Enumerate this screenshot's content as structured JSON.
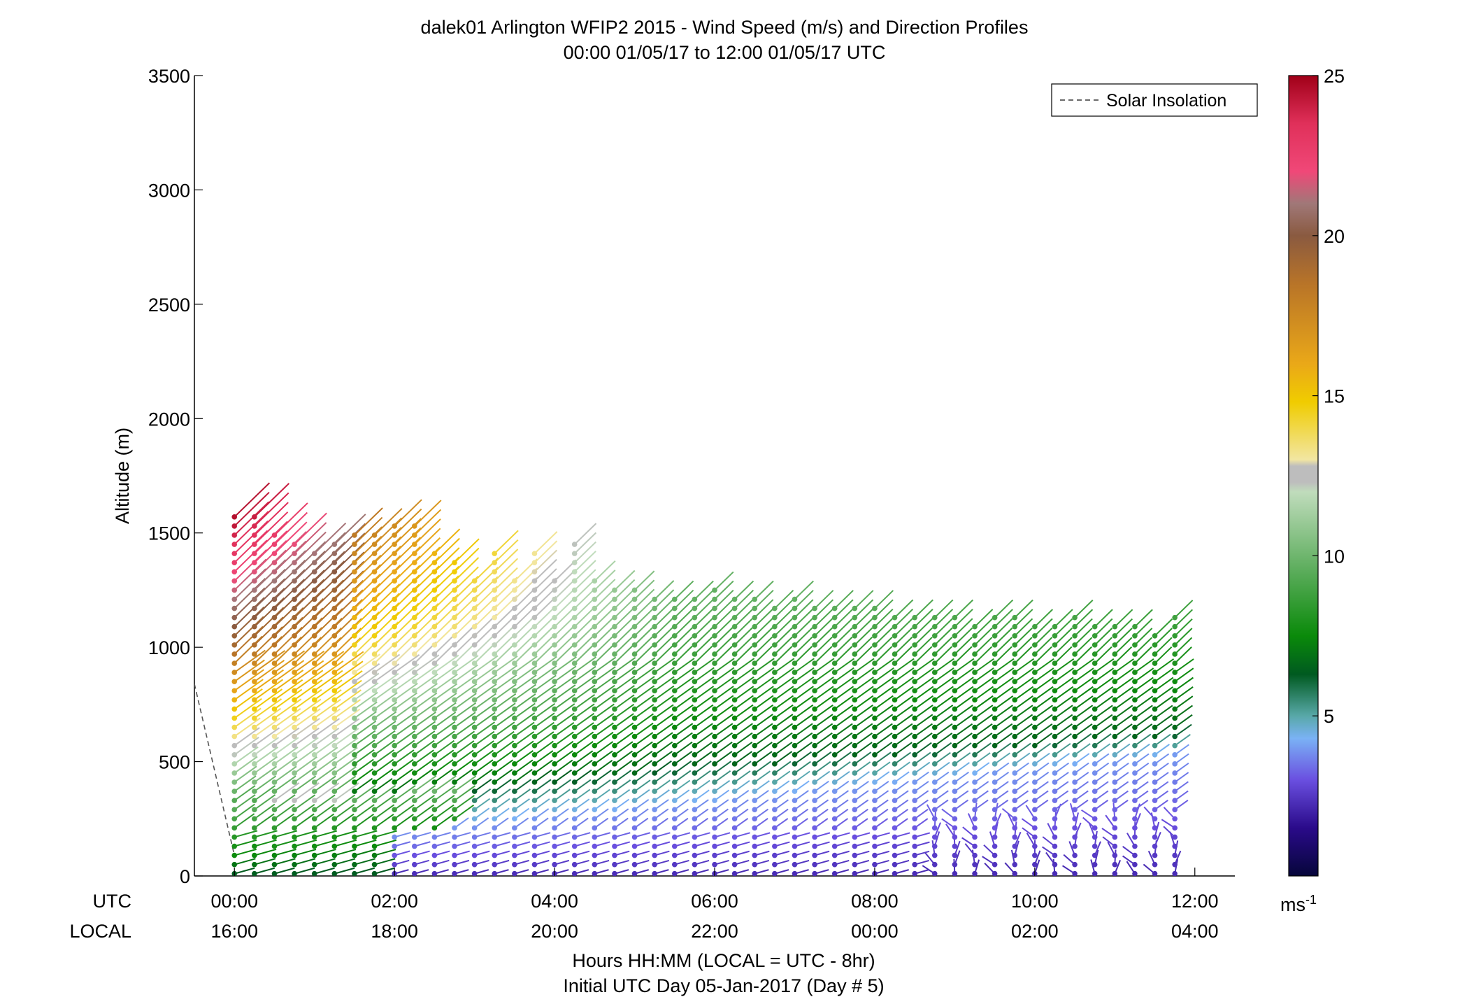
{
  "chart_data": {
    "type": "scatter",
    "title": "dalek01 Arlington WFIP2 2015 - Wind Speed (m/s) and Direction Profiles",
    "subtitle": "00:00 01/05/17 to 12:00 01/05/17  UTC",
    "ylabel": "Altitude (m)",
    "xlabel": "Hours HH:MM  (LOCAL = UTC - 8hr)",
    "xlabel2": "Initial UTC Day 05-Jan-2017 (Day # 5)",
    "row_labels": [
      "UTC",
      "LOCAL"
    ],
    "ylim": [
      0,
      3500
    ],
    "yticks": [
      "0",
      "500",
      "1000",
      "1500",
      "2000",
      "2500",
      "3000",
      "3500"
    ],
    "xlim_hours": [
      -0.5,
      12.5
    ],
    "xticks_utc": [
      "00:00",
      "02:00",
      "04:00",
      "06:00",
      "08:00",
      "10:00",
      "12:00"
    ],
    "xticks_local": [
      "16:00",
      "18:00",
      "20:00",
      "22:00",
      "00:00",
      "02:00",
      "04:00"
    ],
    "legend": {
      "label": "Solar Insolation",
      "position": "top-right",
      "style": "dashed",
      "color": "#555555"
    },
    "colorbar": {
      "label_base": "ms",
      "label_exp": "-1",
      "range": [
        0,
        25
      ],
      "ticks": [
        "5",
        "10",
        "15",
        "20",
        "25"
      ],
      "stops": [
        {
          "v": 0,
          "c": "#06063a"
        },
        {
          "v": 1.5,
          "c": "#2a0a8a"
        },
        {
          "v": 3,
          "c": "#6a4fe0"
        },
        {
          "v": 4.3,
          "c": "#7ab2f5"
        },
        {
          "v": 5,
          "c": "#58a8a8"
        },
        {
          "v": 6.3,
          "c": "#005a20"
        },
        {
          "v": 7.5,
          "c": "#0a8a0a"
        },
        {
          "v": 9.5,
          "c": "#5aac5a"
        },
        {
          "v": 12,
          "c": "#c0dcbc"
        },
        {
          "v": 12.3,
          "c": "#bdbdbd"
        },
        {
          "v": 12.8,
          "c": "#bdbdbd"
        },
        {
          "v": 13,
          "c": "#f2e6a2"
        },
        {
          "v": 14.8,
          "c": "#f0cc00"
        },
        {
          "v": 16,
          "c": "#eaa818"
        },
        {
          "v": 18.5,
          "c": "#b87428"
        },
        {
          "v": 20,
          "c": "#8a5a40"
        },
        {
          "v": 21,
          "c": "#a07878"
        },
        {
          "v": 22,
          "c": "#f04878"
        },
        {
          "v": 23.5,
          "c": "#e0305a"
        },
        {
          "v": 25,
          "c": "#a00018"
        }
      ]
    },
    "solar_insolation": {
      "points": [
        [
          -0.5,
          840
        ],
        [
          0.0,
          90
        ]
      ]
    },
    "profile_times_hours": [
      0.0,
      0.25,
      0.5,
      0.75,
      1.0,
      1.25,
      1.5,
      1.75,
      2.0,
      2.25,
      2.5,
      2.75,
      3.0,
      3.25,
      3.5,
      3.75,
      4.0,
      4.25,
      4.5,
      4.75,
      5.0,
      5.25,
      5.5,
      5.75,
      6.0,
      6.25,
      6.5,
      6.75,
      7.0,
      7.25,
      7.5,
      7.75,
      8.0,
      8.25,
      8.5,
      8.75,
      9.0,
      9.25,
      9.5,
      9.75,
      10.0,
      10.25,
      10.5,
      10.75,
      11.0,
      11.25,
      11.5,
      11.75
    ],
    "profile_top_m": [
      1570,
      1570,
      1500,
      1450,
      1440,
      1470,
      1490,
      1500,
      1560,
      1560,
      1430,
      1380,
      1320,
      1420,
      1300,
      1420,
      1300,
      1480,
      1290,
      1260,
      1260,
      1230,
      1230,
      1220,
      1270,
      1230,
      1210,
      1200,
      1210,
      1190,
      1200,
      1180,
      1190,
      1160,
      1160,
      1150,
      1150,
      1120,
      1150,
      1130,
      1100,
      1110,
      1140,
      1120,
      1120,
      1110,
      1080,
      1140
    ],
    "profile_spacing_m": 40
  }
}
